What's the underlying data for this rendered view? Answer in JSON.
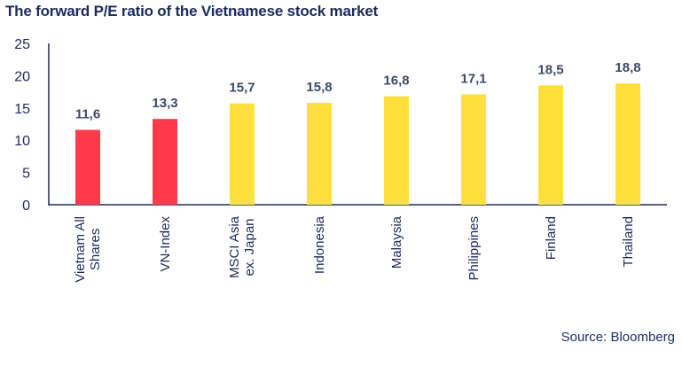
{
  "chart_data": {
    "type": "bar",
    "title": "The forward P/E ratio of the Vietnamese stock market",
    "categories": [
      "Vietnam All\nShares",
      "VN-Index",
      "MSCI Asia\nex. Japan",
      "Indonesia",
      "Malaysia",
      "Philippines",
      "Finland",
      "Thailand"
    ],
    "values": [
      11.6,
      13.3,
      15.7,
      15.8,
      16.8,
      17.1,
      18.5,
      18.8
    ],
    "value_labels": [
      "11,6",
      "13,3",
      "15,7",
      "15,8",
      "16,8",
      "17,1",
      "18,5",
      "18,8"
    ],
    "bar_colors": [
      "#ff3a4a",
      "#ff3a4a",
      "#ffdf3c",
      "#ffdf3c",
      "#ffdf3c",
      "#ffdf3c",
      "#ffdf3c",
      "#ffdf3c"
    ],
    "yticks": [
      "0",
      "5",
      "10",
      "15",
      "20",
      "25"
    ],
    "ylim": [
      0,
      25
    ],
    "xlabel": "",
    "ylabel": "",
    "grid": false,
    "axis_color": "#1c2a5c"
  },
  "source": "Source: Bloomberg"
}
